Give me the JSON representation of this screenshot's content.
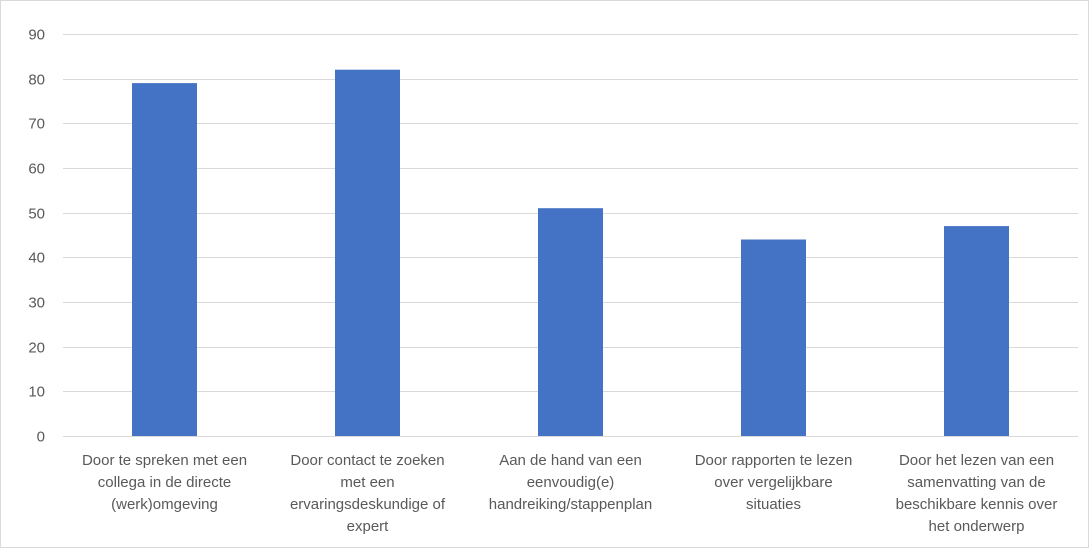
{
  "chart_data": {
    "type": "bar",
    "categories": [
      [
        "Door te spreken met een",
        "collega in de directe",
        "(werk)omgeving"
      ],
      [
        "Door contact te zoeken",
        "met een",
        "ervaringsdeskundige of",
        "expert"
      ],
      [
        "Aan de hand van een",
        "eenvoudig(e)",
        "handreiking/stappenplan"
      ],
      [
        "Door rapporten te lezen",
        "over vergelijkbare",
        "situaties"
      ],
      [
        "Door het lezen van een",
        "samenvatting van de",
        "beschikbare kennis over",
        "het onderwerp"
      ]
    ],
    "values": [
      79,
      82,
      51,
      44,
      47
    ],
    "ylim": [
      0,
      90
    ],
    "yticks": [
      0,
      10,
      20,
      30,
      40,
      50,
      60,
      70,
      80,
      90
    ],
    "grid": true,
    "bar_color": "#4472c4",
    "grid_color": "#d9d9d9",
    "text_color": "#595959"
  }
}
